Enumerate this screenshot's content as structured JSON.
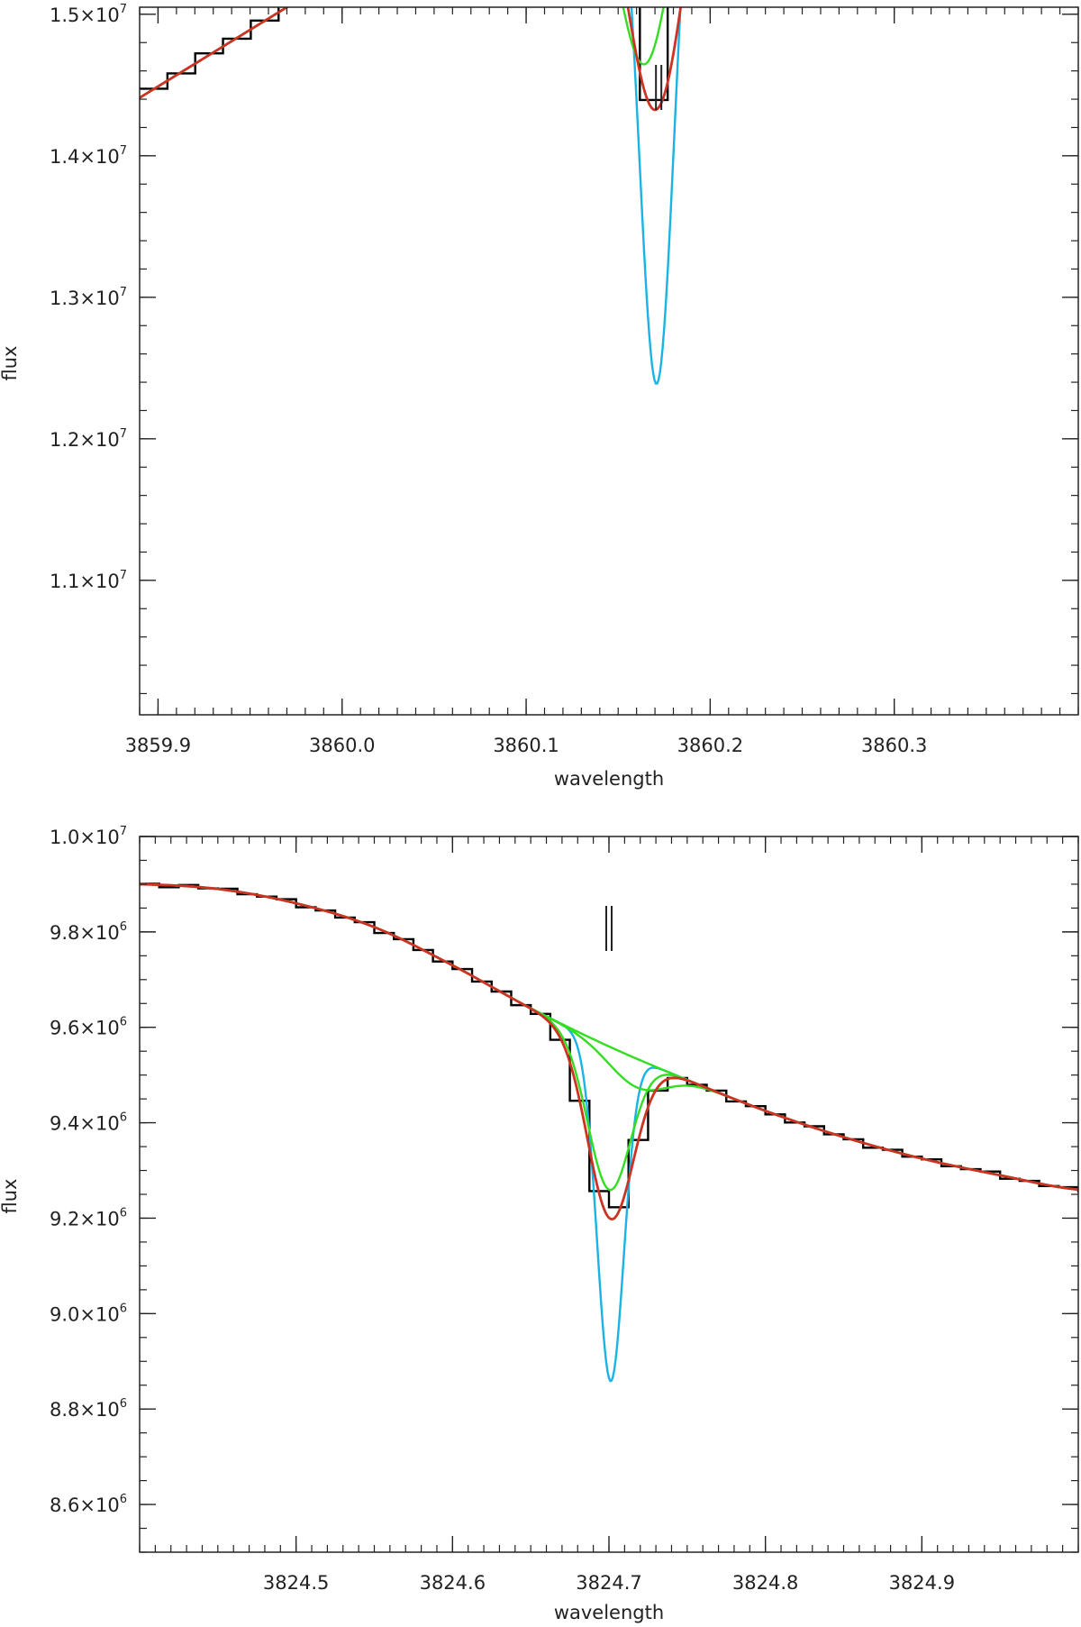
{
  "chart_data": [
    {
      "type": "line",
      "xlabel": "wavelength",
      "ylabel": "flux",
      "xlim": [
        3859.89,
        3860.4
      ],
      "ylim": [
        10050000,
        15050000
      ],
      "x_ticks": [
        3859.9,
        3860.0,
        3860.1,
        3860.2,
        3860.3
      ],
      "x_tick_labels": [
        "3859.9",
        "3860.0",
        "3860.1",
        "3860.2",
        "3860.3"
      ],
      "x_minor_step": 0.01,
      "y_ticks": [
        {
          "value": 15000000,
          "mantissa": "1.5",
          "exponent": "7"
        },
        {
          "value": 14000000,
          "mantissa": "1.4",
          "exponent": "7"
        },
        {
          "value": 13000000,
          "mantissa": "1.3",
          "exponent": "7"
        },
        {
          "value": 12000000,
          "mantissa": "1.2",
          "exponent": "7"
        },
        {
          "value": 11000000,
          "mantissa": "1.1",
          "exponent": "7"
        }
      ],
      "y_minor_step": 200000,
      "marker": {
        "x": 3860.172,
        "label": "||"
      },
      "grid": false,
      "continuum": {
        "slope": 8000000,
        "x0": 3859.89,
        "y0": 14410000
      },
      "data_step": 0.0151,
      "data_noise": [
        0.2,
        -0.5,
        0.7,
        -0.3,
        0.1,
        0.6,
        -0.6,
        0.3,
        -0.2,
        0.5,
        -0.4,
        0.4,
        -0.1,
        0.2,
        0.6,
        -0.5,
        0.3
      ],
      "series": [
        {
          "role": "data",
          "color": "#000000"
        },
        {
          "role": "component",
          "color": "#1ab3e6",
          "lines": [
            {
              "center": 3860.171,
              "depth": 4270000,
              "sigma": 0.0095
            }
          ]
        },
        {
          "role": "component",
          "color": "#33dd22",
          "lines": [
            {
              "center": 3860.165,
              "depth": 1960000,
              "sigma": 0.016
            },
            {
              "center": 3860.176,
              "depth": 465000,
              "sigma": 0.02
            }
          ]
        },
        {
          "role": "fit",
          "color": "#cc3322",
          "lines": [
            {
              "center": 3860.171,
              "depth": 2330000,
              "sigma": 0.0165
            }
          ]
        }
      ]
    },
    {
      "type": "line",
      "xlabel": "wavelength",
      "ylabel": "flux",
      "xlim": [
        3824.4,
        3825.0
      ],
      "ylim": [
        8500000,
        10000000
      ],
      "x_ticks": [
        3824.5,
        3824.6,
        3824.7,
        3824.8,
        3824.9
      ],
      "x_tick_labels": [
        "3824.5",
        "3824.6",
        "3824.7",
        "3824.8",
        "3824.9"
      ],
      "x_minor_step": 0.01,
      "y_ticks": [
        {
          "value": 10000000,
          "mantissa": "1.0",
          "exponent": "7"
        },
        {
          "value": 9800000,
          "mantissa": "9.8",
          "exponent": "6"
        },
        {
          "value": 9600000,
          "mantissa": "9.6",
          "exponent": "6"
        },
        {
          "value": 9400000,
          "mantissa": "9.4",
          "exponent": "6"
        },
        {
          "value": 9200000,
          "mantissa": "9.2",
          "exponent": "6"
        },
        {
          "value": 9000000,
          "mantissa": "9.0",
          "exponent": "6"
        },
        {
          "value": 8800000,
          "mantissa": "8.8",
          "exponent": "6"
        },
        {
          "value": 8600000,
          "mantissa": "8.6",
          "exponent": "6"
        }
      ],
      "y_minor_step": 50000,
      "marker": {
        "x": 3824.7,
        "label": "||"
      },
      "grid": false,
      "continuum_points": [
        [
          3824.4,
          9900000
        ],
        [
          3824.45,
          9890000
        ],
        [
          3824.5,
          9860000
        ],
        [
          3824.55,
          9810000
        ],
        [
          3824.6,
          9730000
        ],
        [
          3824.65,
          9640000
        ],
        [
          3824.7,
          9560000
        ],
        [
          3824.75,
          9490000
        ],
        [
          3824.8,
          9425000
        ],
        [
          3824.85,
          9370000
        ],
        [
          3824.9,
          9325000
        ],
        [
          3824.95,
          9290000
        ],
        [
          3825.0,
          9260000
        ]
      ],
      "data_step": 0.0125,
      "data_noise": [
        0.3,
        -0.8,
        0.5,
        -0.2,
        0.6,
        -0.4,
        0.1,
        0.7,
        -0.6,
        0.2,
        -0.3,
        0.5,
        -0.7,
        0.4,
        0.0,
        -0.5,
        0.6,
        -0.1
      ],
      "series": [
        {
          "role": "data",
          "color": "#000000"
        },
        {
          "role": "component",
          "color": "#1ab3e6",
          "lines": [
            {
              "center": 3824.701,
              "depth": 700000,
              "sigma": 0.0085
            }
          ]
        },
        {
          "role": "component",
          "color": "#33dd22",
          "lines": [
            {
              "center": 3824.7,
              "depth": 300000,
              "sigma": 0.0135
            },
            {
              "center": 3824.718,
              "depth": 60000,
              "sigma": 0.018
            }
          ]
        },
        {
          "role": "fit",
          "color": "#cc3322",
          "lines": [
            {
              "center": 3824.701,
              "depth": 360000,
              "sigma": 0.0145
            }
          ]
        }
      ]
    }
  ]
}
